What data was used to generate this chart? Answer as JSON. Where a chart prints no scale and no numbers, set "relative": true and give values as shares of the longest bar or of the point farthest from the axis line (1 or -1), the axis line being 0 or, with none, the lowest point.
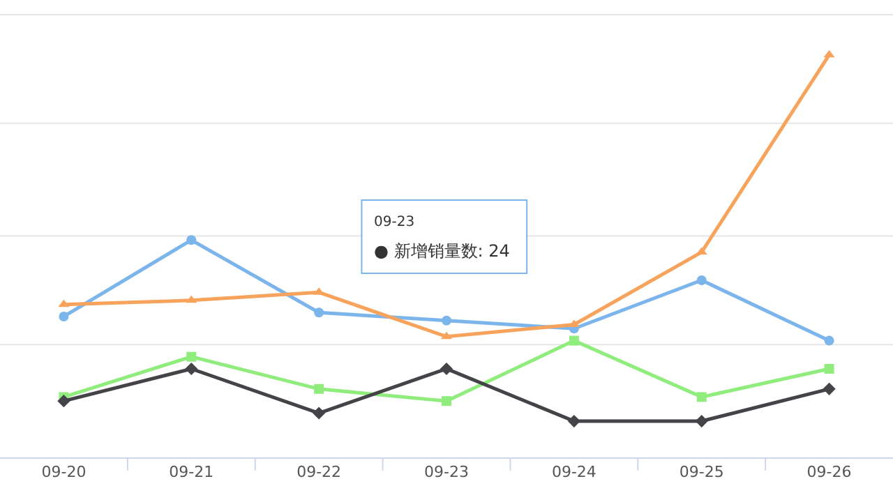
{
  "chart_data": {
    "type": "line",
    "relative": true,
    "ref_lines": [
      {
        "axis": "y",
        "value": 0.28,
        "color": "#e6e6e6"
      },
      {
        "axis": "y",
        "value": 0.55,
        "color": "#e6e6e6"
      },
      {
        "axis": "y",
        "value": 0.83,
        "color": "#e6e6e6"
      },
      {
        "axis": "y",
        "value": 1.1,
        "color": "#e6e6e6"
      }
    ],
    "categories": [
      "09-20",
      "09-21",
      "09-22",
      "09-23",
      "09-24",
      "09-25",
      "09-26"
    ],
    "series": [
      {
        "color": "#7cb5ec",
        "marker": "circle",
        "values": [
          0.35,
          0.54,
          0.36,
          0.34,
          0.32,
          0.44,
          0.29
        ]
      },
      {
        "color": "#f7a35c",
        "marker": "triangle",
        "values": [
          0.38,
          0.39,
          0.41,
          0.3,
          0.33,
          0.51,
          1
        ]
      },
      {
        "color": "#90ed7d",
        "marker": "square",
        "values": [
          0.15,
          0.25,
          0.17,
          0.14,
          0.29,
          0.15,
          0.22
        ]
      },
      {
        "color": "#434348",
        "marker": "diamond",
        "values": [
          0.14,
          0.22,
          0.11,
          0.22,
          0.09,
          0.09,
          0.17
        ]
      }
    ],
    "annotations": [
      "09-23",
      "● 新增销量数: 24"
    ]
  }
}
